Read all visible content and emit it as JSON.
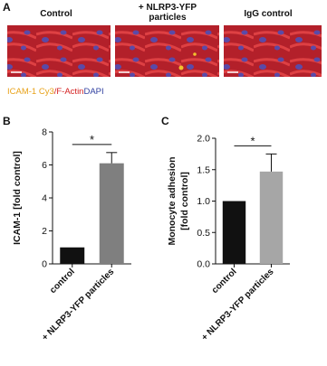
{
  "panel_a": {
    "letter": "A",
    "images": [
      "Control",
      "+ NLRP3-YFP particles",
      "IgG control"
    ],
    "stain_legend": [
      "ICAM-1 Cy3",
      "/F-Actin",
      "DAPI"
    ]
  },
  "chart_data": [
    {
      "type": "bar",
      "letter": "B",
      "ylabel": "ICAM-1 [fold control]",
      "categories": [
        "control",
        "+ NLRP3-YFP particles"
      ],
      "values": [
        1,
        6.1
      ],
      "errors": [
        null,
        0.65
      ],
      "colors": [
        "#111111",
        "#7f7f7f"
      ],
      "ylim": [
        0,
        8
      ],
      "yticks": [
        0,
        2,
        4,
        6,
        8
      ],
      "significance": "*"
    },
    {
      "type": "bar",
      "letter": "C",
      "ylabel": [
        "Monocyte adhesion",
        "[fold control]"
      ],
      "categories": [
        "control",
        "+ NLRP3-YFP particles"
      ],
      "values": [
        1.0,
        1.47
      ],
      "errors": [
        null,
        0.28
      ],
      "colors": [
        "#111111",
        "#a6a6a6"
      ],
      "ylim": [
        0,
        2.0
      ],
      "yticks": [
        {
          "value": 0,
          "label": "0.0"
        },
        {
          "value": 0.5,
          "label": "0.5"
        },
        {
          "value": 1,
          "label": "1.0"
        },
        {
          "value": 1.5,
          "label": "1.5"
        },
        {
          "value": 2,
          "label": "2.0"
        }
      ],
      "significance": "*"
    }
  ]
}
